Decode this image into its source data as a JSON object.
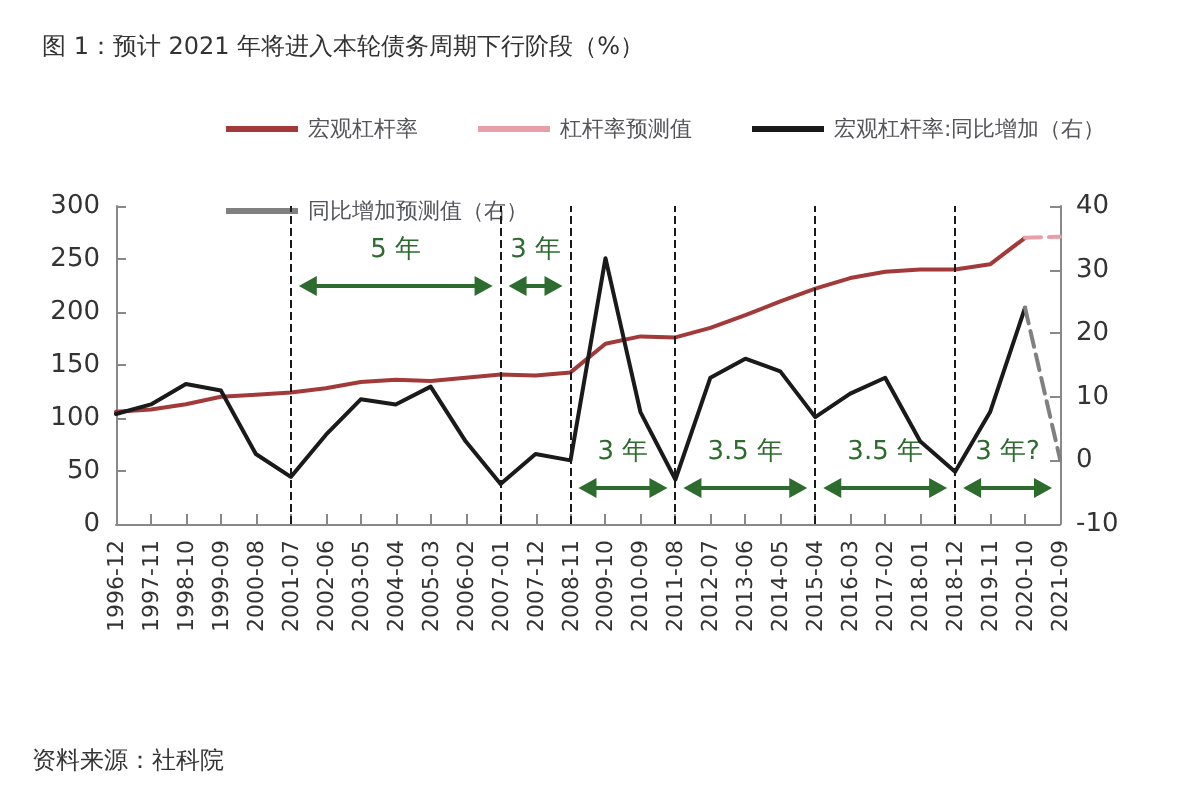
{
  "chart_data": {
    "type": "line",
    "title": "图 1：预计 2021 年将进入本轮债务周期下行阶段（%）",
    "categories": [
      "1996-12",
      "1997-11",
      "1998-10",
      "1999-09",
      "2000-08",
      "2001-07",
      "2002-06",
      "2003-05",
      "2004-04",
      "2005-03",
      "2006-02",
      "2007-01",
      "2007-12",
      "2008-11",
      "2009-10",
      "2010-09",
      "2011-08",
      "2012-07",
      "2013-06",
      "2014-05",
      "2015-04",
      "2016-03",
      "2017-02",
      "2018-01",
      "2018-12",
      "2019-11",
      "2020-10",
      "2021-09"
    ],
    "series": [
      {
        "name": "宏观杠杆率",
        "color": "#a33a3a",
        "line_style": "solid",
        "values": [
          106,
          108,
          113,
          120,
          122,
          124,
          128,
          134,
          136,
          135,
          138,
          141,
          140,
          143,
          170,
          177,
          176,
          185,
          197,
          210,
          222,
          232,
          238,
          240,
          240,
          245,
          270,
          null
        ]
      },
      {
        "name": "杠杆率预测值",
        "color": "#e8a0a8",
        "line_style": "dashed",
        "values": [
          null,
          null,
          null,
          null,
          null,
          null,
          null,
          null,
          null,
          null,
          null,
          null,
          null,
          null,
          null,
          null,
          null,
          null,
          null,
          null,
          null,
          null,
          null,
          null,
          null,
          null,
          270,
          271
        ]
      },
      {
        "name": "宏观杠杆率:同比增加（右）",
        "color": "#1a1a1a",
        "line_style": "solid",
        "axis": "y2",
        "values": [
          7.3,
          8.8,
          12,
          11,
          1,
          -2.6,
          4,
          9.6,
          8.8,
          11.6,
          3,
          -3.7,
          1,
          0,
          31.8,
          7.6,
          -3,
          13,
          16,
          14,
          6.8,
          10.5,
          13,
          3,
          -1.8,
          7.6,
          24,
          null
        ]
      },
      {
        "name": "同比增加预测值（右）",
        "color": "#808080",
        "line_style": "dashed",
        "axis": "y2",
        "values": [
          null,
          null,
          null,
          null,
          null,
          null,
          null,
          null,
          null,
          null,
          null,
          null,
          null,
          null,
          null,
          null,
          null,
          null,
          null,
          null,
          null,
          null,
          null,
          null,
          null,
          null,
          24,
          0.2
        ]
      }
    ],
    "ylim": [
      0,
      300
    ],
    "yticks": [
      0,
      50,
      100,
      150,
      200,
      250,
      300
    ],
    "y2lim": [
      -10,
      40
    ],
    "y2ticks": [
      -10,
      0,
      10,
      20,
      30,
      40
    ],
    "ref_lines": [
      {
        "axis": "x",
        "value": "2001-07",
        "color": "#1a1a1a",
        "line_style": "dashed"
      },
      {
        "axis": "x",
        "value": "2007-01",
        "color": "#1a1a1a",
        "line_style": "dashed"
      },
      {
        "axis": "x",
        "value": "2008-11",
        "color": "#1a1a1a",
        "line_style": "dashed"
      },
      {
        "axis": "x",
        "value": "2011-08",
        "color": "#1a1a1a",
        "line_style": "dashed"
      },
      {
        "axis": "x",
        "value": "2015-04",
        "color": "#1a1a1a",
        "line_style": "dashed"
      },
      {
        "axis": "x",
        "value": "2018-12",
        "color": "#1a1a1a",
        "line_style": "dashed"
      }
    ],
    "annotations": [
      "5 年",
      "3 年",
      "3 年",
      "3.5 年",
      "3.5 年",
      "3 年?",
      "资料来源：社科院"
    ],
    "legend": "top",
    "grid": false,
    "marker": "none"
  }
}
